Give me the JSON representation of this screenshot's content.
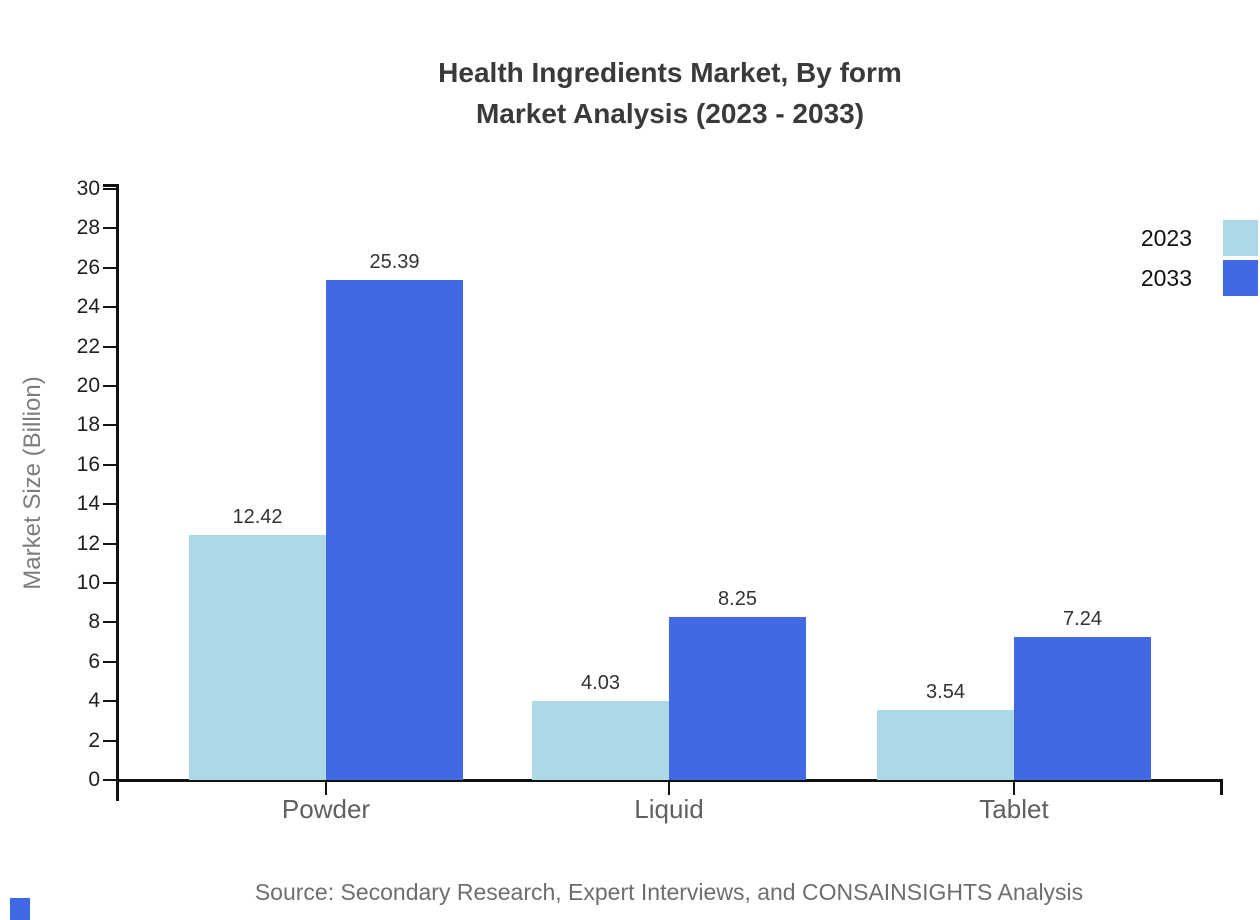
{
  "title": {
    "line1": "Health Ingredients Market, By form",
    "line2": "Market Analysis (2023 - 2033)"
  },
  "source": "Source: Secondary Research, Expert Interviews, and CONSAINSIGHTS Analysis",
  "chart_data": {
    "type": "bar",
    "title": "Health Ingredients Market, By form — Market Analysis (2023 - 2033)",
    "categories": [
      "Powder",
      "Liquid",
      "Tablet"
    ],
    "series": [
      {
        "name": "2023",
        "color": "#ADD8E6",
        "values": [
          12.42,
          4.03,
          3.54
        ]
      },
      {
        "name": "2033",
        "color": "#4169E1",
        "values": [
          25.39,
          8.25,
          7.24
        ]
      }
    ],
    "xlabel": "",
    "ylabel": "Market Size (Billion)",
    "ylim": [
      0,
      30
    ],
    "ytick_step": 2,
    "grid": false,
    "legend_position": "top-right",
    "value_labels": true,
    "axis_color": "#111111"
  },
  "watermark": {
    "color": "#4169E1"
  }
}
